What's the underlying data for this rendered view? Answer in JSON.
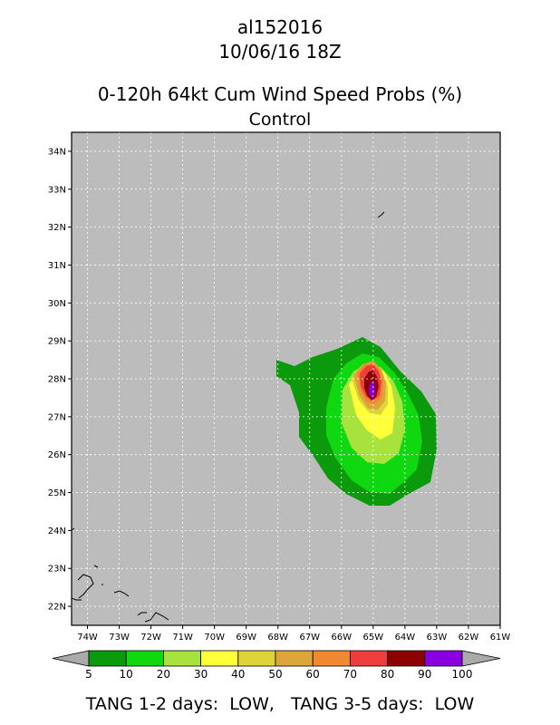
{
  "header": {
    "storm_id": "al152016",
    "datetime": "10/06/16 18Z",
    "product": "0-120h 64kt Cum Wind Speed Probs (%)",
    "run": "Control"
  },
  "map": {
    "lon_range": [
      -74.5,
      -61
    ],
    "lat_range": [
      21.5,
      34.5
    ],
    "lon_ticks": [
      "74W",
      "73W",
      "72W",
      "71W",
      "70W",
      "69W",
      "68W",
      "67W",
      "66W",
      "65W",
      "64W",
      "63W",
      "62W",
      "61W"
    ],
    "lat_ticks": [
      "22N",
      "23N",
      "24N",
      "25N",
      "26N",
      "27N",
      "28N",
      "29N",
      "30N",
      "31N",
      "32N",
      "33N",
      "34N"
    ],
    "background_color": "#bcbcbc",
    "grid": true,
    "probability_max_location": {
      "lon": -65.1,
      "lat": 27.5
    }
  },
  "legend": {
    "labels": [
      "5",
      "10",
      "20",
      "30",
      "40",
      "50",
      "60",
      "70",
      "80",
      "90",
      "100"
    ],
    "colors": [
      "#0b9a0b",
      "#10d810",
      "#a7e33c",
      "#ffff3a",
      "#ded43a",
      "#dca63a",
      "#ef8830",
      "#ef3c3c",
      "#8b0000",
      "#8a00e0"
    ],
    "end_color": "#aaaaaa"
  },
  "footer": {
    "text": "TANG 1-2 days:  LOW,   TANG 3-5 days:  LOW"
  }
}
